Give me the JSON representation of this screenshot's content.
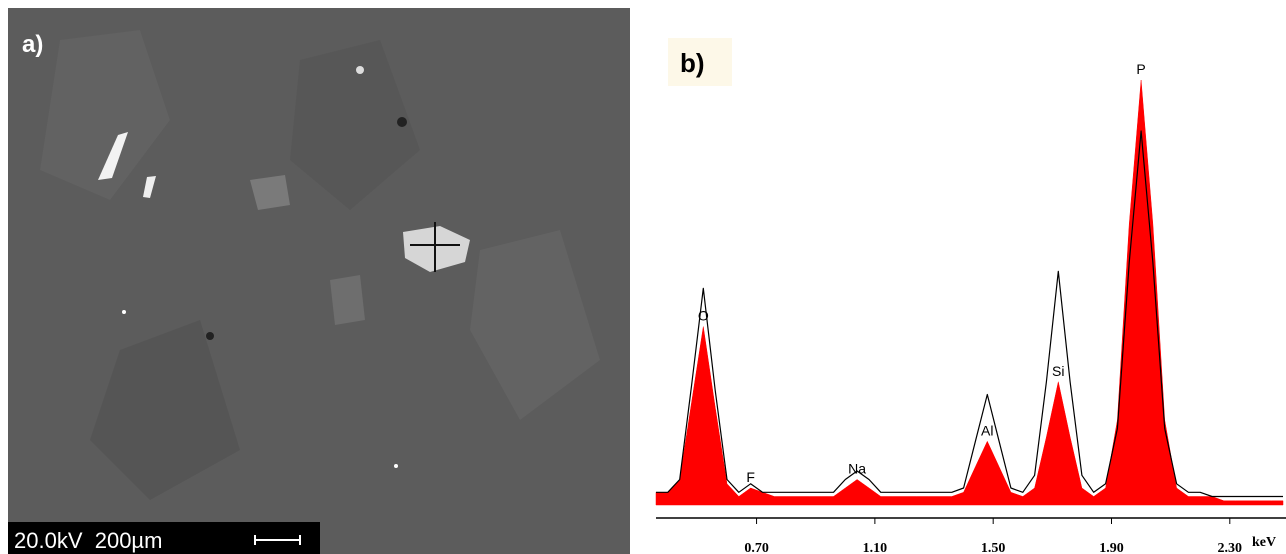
{
  "panel_a": {
    "label": "a)",
    "scale_bar_text": "20.0kV  200µm"
  },
  "chart_data": {
    "type": "area",
    "panel_label": "b)",
    "x": [
      0.36,
      0.4,
      0.44,
      0.48,
      0.52,
      0.56,
      0.6,
      0.64,
      0.68,
      0.72,
      0.76,
      0.8,
      0.84,
      0.88,
      0.92,
      0.96,
      1.0,
      1.04,
      1.08,
      1.12,
      1.16,
      1.2,
      1.24,
      1.28,
      1.32,
      1.36,
      1.4,
      1.44,
      1.48,
      1.52,
      1.56,
      1.6,
      1.64,
      1.68,
      1.72,
      1.76,
      1.8,
      1.84,
      1.88,
      1.92,
      1.96,
      2.0,
      2.04,
      2.08,
      2.12,
      2.16,
      2.2,
      2.24,
      2.28,
      2.32,
      2.36,
      2.4,
      2.44,
      2.48
    ],
    "series": [
      {
        "color": "#ff0000",
        "fill": true,
        "values": [
          3,
          3,
          6,
          24,
          42,
          23,
          5,
          2,
          4,
          3,
          2,
          2,
          2,
          2,
          2,
          2,
          4,
          6,
          4,
          2,
          2,
          2,
          2,
          2,
          2,
          2,
          3,
          9,
          15,
          9,
          3,
          2,
          4,
          16,
          29,
          16,
          4,
          2,
          4,
          20,
          66,
          100,
          66,
          20,
          4,
          2,
          2,
          2,
          1,
          1,
          1,
          1,
          1,
          1
        ]
      },
      {
        "color": "#000000",
        "fill": false,
        "values": [
          3,
          3,
          6,
          28,
          51,
          27,
          6,
          3,
          5,
          3,
          3,
          3,
          3,
          3,
          3,
          3,
          6,
          8,
          6,
          3,
          3,
          3,
          3,
          3,
          3,
          3,
          4,
          15,
          26,
          15,
          4,
          3,
          7,
          29,
          55,
          29,
          7,
          3,
          5,
          18,
          57,
          88,
          57,
          18,
          5,
          3,
          3,
          2,
          2,
          2,
          2,
          2,
          2,
          2
        ]
      }
    ],
    "xlim": [
      0.36,
      2.49
    ],
    "ylim": [
      0,
      100
    ],
    "xticks": [
      {
        "value": 0.7,
        "label": "0.70"
      },
      {
        "value": 1.1,
        "label": "1.10"
      },
      {
        "value": 1.5,
        "label": "1.50"
      },
      {
        "value": 1.9,
        "label": "1.90"
      },
      {
        "value": 2.3,
        "label": "2.30"
      }
    ],
    "xlabel": "keV",
    "peak_labels": [
      {
        "label": "O",
        "x": 0.52
      },
      {
        "label": "F",
        "x": 0.68
      },
      {
        "label": "Na",
        "x": 1.04
      },
      {
        "label": "Al",
        "x": 1.48
      },
      {
        "label": "Si",
        "x": 1.72
      },
      {
        "label": "P",
        "x": 2.0
      }
    ]
  }
}
